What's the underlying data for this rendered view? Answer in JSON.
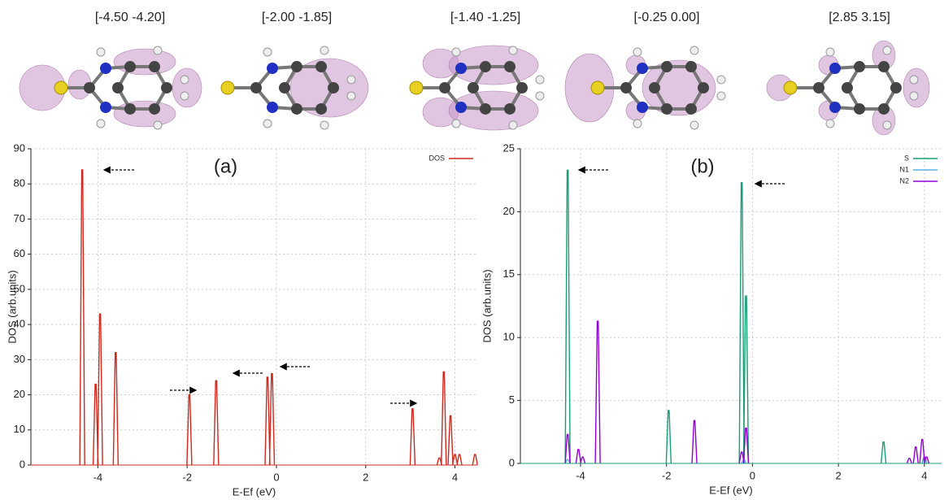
{
  "molecule_labels": [
    "[-4.50 -4.20]",
    "[-2.00 -1.85]",
    "[-1.40 -1.25]",
    "[-0.25 0.00]",
    "[2.85 3.15]"
  ],
  "chart_data": [
    {
      "type": "spectrum",
      "annotation": "(a)",
      "xlabel": "E-Ef (eV)",
      "ylabel": "DOS (arb.units)",
      "xlim": [
        -5.5,
        4.5
      ],
      "ylim": [
        0,
        90
      ],
      "xticks": [
        -4,
        -2,
        0,
        2,
        4
      ],
      "yticks": [
        0,
        10,
        20,
        30,
        40,
        50,
        60,
        70,
        80,
        90
      ],
      "grid": true,
      "legend": "upper right",
      "series": [
        {
          "name": "DOS",
          "color": "#cc2a1e",
          "x": [
            -4.35,
            -4.05,
            -3.95,
            -3.6,
            -1.95,
            -1.35,
            -0.2,
            -0.1,
            3.05,
            3.65,
            3.75,
            3.9,
            4.0,
            4.1,
            4.45
          ],
          "values": [
            84,
            23,
            43,
            32,
            20,
            24,
            25,
            26,
            16,
            2,
            26.5,
            14,
            3,
            3,
            3
          ]
        }
      ]
    },
    {
      "type": "spectrum",
      "annotation": "(b)",
      "xlabel": "E-Ef (eV)",
      "ylabel": "DOS (arb.units)",
      "xlim": [
        -5.4,
        4.4
      ],
      "ylim": [
        0,
        25
      ],
      "xticks": [
        -4,
        -2,
        0,
        2,
        4
      ],
      "yticks": [
        0,
        5,
        10,
        15,
        20,
        25
      ],
      "grid": true,
      "legend": "upper right",
      "series": [
        {
          "name": "S",
          "color": "#1a9e77",
          "x": [
            -4.3,
            -1.95,
            -0.25,
            -0.15,
            3.05,
            4.0
          ],
          "values": [
            23.3,
            4.2,
            22.3,
            13.3,
            1.7,
            0.5
          ]
        },
        {
          "name": "N1",
          "color": "#56b4e9",
          "x": [
            -4.3,
            -0.2,
            4.0
          ],
          "values": [
            0.3,
            0.3,
            0.3
          ]
        },
        {
          "name": "N2",
          "color": "#9400d3",
          "x": [
            -4.3,
            -4.05,
            -3.95,
            -3.6,
            -1.35,
            -0.25,
            -0.15,
            3.65,
            3.8,
            3.95,
            4.05
          ],
          "values": [
            2.3,
            1.1,
            0.5,
            11.3,
            3.4,
            0.9,
            2.8,
            0.4,
            1.3,
            1.9,
            0.5
          ]
        }
      ]
    }
  ]
}
